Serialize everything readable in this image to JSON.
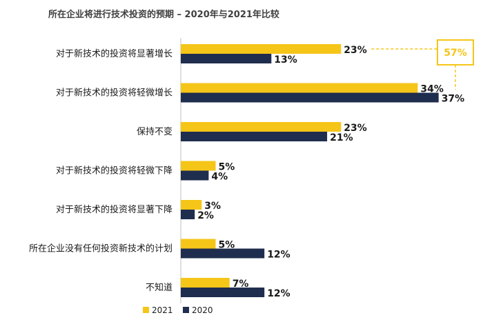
{
  "chart_data": {
    "type": "bar",
    "orientation": "horizontal",
    "title": "所在企业将进行技术投资的预期 – 2020年与2021年比较",
    "categories": [
      "对于新技术的投资将显著增长",
      "对于新技术的投资将轻微增长",
      "保持不变",
      "对于新技术的投资将轻微下降",
      "对于新技术的投资将显著下降",
      "所在企业没有任何投资新技术的计划",
      "不知道"
    ],
    "series": [
      {
        "name": "2021",
        "values": [
          23,
          34,
          23,
          5,
          3,
          5,
          7
        ],
        "labels": [
          "23%",
          "34%",
          "23%",
          "5%",
          "3%",
          "5%",
          "7%"
        ],
        "color": "#f5c518"
      },
      {
        "name": "2020",
        "values": [
          13,
          37,
          21,
          4,
          2,
          12,
          12
        ],
        "labels": [
          "13%",
          "37%",
          "21%",
          "4%",
          "2%",
          "12%",
          "12%"
        ],
        "color": "#1f2d4e"
      }
    ],
    "annotation": {
      "text": "57%",
      "category_index": 0,
      "series": "2021"
    },
    "legend_position": "bottom-left",
    "grid": false
  }
}
